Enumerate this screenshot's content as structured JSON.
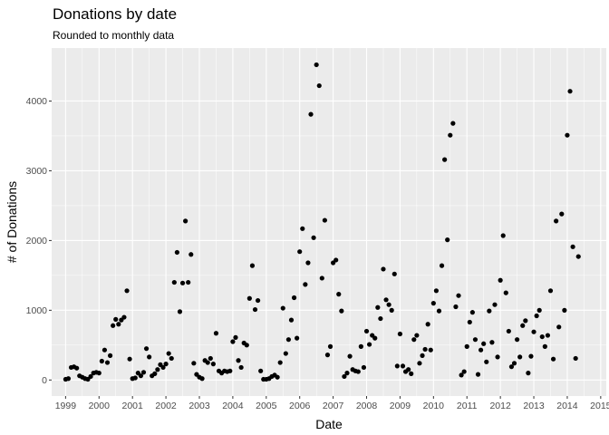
{
  "chart_data": {
    "type": "scatter",
    "title": "Donations by date",
    "subtitle": "Rounded to monthly data",
    "xlabel": "Date",
    "ylabel": "# of Donations",
    "x_ticks": [
      "1999",
      "2000",
      "2001",
      "2002",
      "2003",
      "2004",
      "2005",
      "2006",
      "2007",
      "2008",
      "2009",
      "2010",
      "2011",
      "2012",
      "2013",
      "2014",
      "2015"
    ],
    "y_ticks": [
      0,
      1000,
      2000,
      3000,
      4000
    ],
    "xlim": [
      "1998-08",
      "2015-03"
    ],
    "ylim": [
      -230,
      4760
    ],
    "grid": true,
    "colors": {
      "panel": "#EBEBEB",
      "grid": "#FFFFFF",
      "point": "#000000"
    },
    "points": [
      {
        "x": "1999-01",
        "y": 10
      },
      {
        "x": "1999-02",
        "y": 20
      },
      {
        "x": "1999-03",
        "y": 180
      },
      {
        "x": "1999-04",
        "y": 190
      },
      {
        "x": "1999-05",
        "y": 170
      },
      {
        "x": "1999-06",
        "y": 60
      },
      {
        "x": "1999-07",
        "y": 40
      },
      {
        "x": "1999-08",
        "y": 20
      },
      {
        "x": "1999-09",
        "y": 10
      },
      {
        "x": "1999-10",
        "y": 50
      },
      {
        "x": "1999-11",
        "y": 100
      },
      {
        "x": "1999-12",
        "y": 110
      },
      {
        "x": "2000-01",
        "y": 100
      },
      {
        "x": "2000-02",
        "y": 270
      },
      {
        "x": "2000-03",
        "y": 430
      },
      {
        "x": "2000-04",
        "y": 250
      },
      {
        "x": "2000-05",
        "y": 350
      },
      {
        "x": "2000-06",
        "y": 780
      },
      {
        "x": "2000-07",
        "y": 870
      },
      {
        "x": "2000-08",
        "y": 800
      },
      {
        "x": "2000-09",
        "y": 860
      },
      {
        "x": "2000-10",
        "y": 900
      },
      {
        "x": "2000-11",
        "y": 1280
      },
      {
        "x": "2000-12",
        "y": 300
      },
      {
        "x": "2001-01",
        "y": 20
      },
      {
        "x": "2001-02",
        "y": 30
      },
      {
        "x": "2001-03",
        "y": 100
      },
      {
        "x": "2001-04",
        "y": 60
      },
      {
        "x": "2001-05",
        "y": 110
      },
      {
        "x": "2001-06",
        "y": 450
      },
      {
        "x": "2001-07",
        "y": 330
      },
      {
        "x": "2001-08",
        "y": 60
      },
      {
        "x": "2001-09",
        "y": 90
      },
      {
        "x": "2001-10",
        "y": 150
      },
      {
        "x": "2001-11",
        "y": 220
      },
      {
        "x": "2001-12",
        "y": 180
      },
      {
        "x": "2002-01",
        "y": 230
      },
      {
        "x": "2002-02",
        "y": 380
      },
      {
        "x": "2002-03",
        "y": 310
      },
      {
        "x": "2002-04",
        "y": 1400
      },
      {
        "x": "2002-05",
        "y": 1830
      },
      {
        "x": "2002-06",
        "y": 980
      },
      {
        "x": "2002-07",
        "y": 1390
      },
      {
        "x": "2002-08",
        "y": 2280
      },
      {
        "x": "2002-09",
        "y": 1400
      },
      {
        "x": "2002-10",
        "y": 1800
      },
      {
        "x": "2002-11",
        "y": 240
      },
      {
        "x": "2002-12",
        "y": 80
      },
      {
        "x": "2003-01",
        "y": 40
      },
      {
        "x": "2003-02",
        "y": 20
      },
      {
        "x": "2003-03",
        "y": 280
      },
      {
        "x": "2003-04",
        "y": 250
      },
      {
        "x": "2003-05",
        "y": 310
      },
      {
        "x": "2003-06",
        "y": 230
      },
      {
        "x": "2003-07",
        "y": 670
      },
      {
        "x": "2003-08",
        "y": 130
      },
      {
        "x": "2003-09",
        "y": 100
      },
      {
        "x": "2003-10",
        "y": 130
      },
      {
        "x": "2003-11",
        "y": 120
      },
      {
        "x": "2003-12",
        "y": 130
      },
      {
        "x": "2004-01",
        "y": 550
      },
      {
        "x": "2004-02",
        "y": 610
      },
      {
        "x": "2004-03",
        "y": 280
      },
      {
        "x": "2004-04",
        "y": 180
      },
      {
        "x": "2004-05",
        "y": 530
      },
      {
        "x": "2004-06",
        "y": 500
      },
      {
        "x": "2004-07",
        "y": 1170
      },
      {
        "x": "2004-08",
        "y": 1640
      },
      {
        "x": "2004-09",
        "y": 1010
      },
      {
        "x": "2004-10",
        "y": 1140
      },
      {
        "x": "2004-11",
        "y": 130
      },
      {
        "x": "2004-12",
        "y": 10
      },
      {
        "x": "2005-01",
        "y": 10
      },
      {
        "x": "2005-02",
        "y": 20
      },
      {
        "x": "2005-03",
        "y": 50
      },
      {
        "x": "2005-04",
        "y": 70
      },
      {
        "x": "2005-05",
        "y": 40
      },
      {
        "x": "2005-06",
        "y": 250
      },
      {
        "x": "2005-07",
        "y": 1030
      },
      {
        "x": "2005-08",
        "y": 380
      },
      {
        "x": "2005-09",
        "y": 580
      },
      {
        "x": "2005-10",
        "y": 860
      },
      {
        "x": "2005-11",
        "y": 1180
      },
      {
        "x": "2005-12",
        "y": 600
      },
      {
        "x": "2006-01",
        "y": 1840
      },
      {
        "x": "2006-02",
        "y": 2170
      },
      {
        "x": "2006-03",
        "y": 1370
      },
      {
        "x": "2006-04",
        "y": 1680
      },
      {
        "x": "2006-05",
        "y": 3810
      },
      {
        "x": "2006-06",
        "y": 2040
      },
      {
        "x": "2006-07",
        "y": 4520
      },
      {
        "x": "2006-08",
        "y": 4220
      },
      {
        "x": "2006-09",
        "y": 1460
      },
      {
        "x": "2006-10",
        "y": 2290
      },
      {
        "x": "2006-11",
        "y": 360
      },
      {
        "x": "2006-12",
        "y": 480
      },
      {
        "x": "2007-01",
        "y": 1680
      },
      {
        "x": "2007-02",
        "y": 1720
      },
      {
        "x": "2007-03",
        "y": 1230
      },
      {
        "x": "2007-04",
        "y": 990
      },
      {
        "x": "2007-05",
        "y": 50
      },
      {
        "x": "2007-06",
        "y": 100
      },
      {
        "x": "2007-07",
        "y": 340
      },
      {
        "x": "2007-08",
        "y": 150
      },
      {
        "x": "2007-09",
        "y": 130
      },
      {
        "x": "2007-10",
        "y": 120
      },
      {
        "x": "2007-11",
        "y": 480
      },
      {
        "x": "2007-12",
        "y": 180
      },
      {
        "x": "2008-01",
        "y": 700
      },
      {
        "x": "2008-02",
        "y": 510
      },
      {
        "x": "2008-03",
        "y": 640
      },
      {
        "x": "2008-04",
        "y": 600
      },
      {
        "x": "2008-05",
        "y": 1040
      },
      {
        "x": "2008-06",
        "y": 880
      },
      {
        "x": "2008-07",
        "y": 1590
      },
      {
        "x": "2008-08",
        "y": 1150
      },
      {
        "x": "2008-09",
        "y": 1080
      },
      {
        "x": "2008-10",
        "y": 1000
      },
      {
        "x": "2008-11",
        "y": 1520
      },
      {
        "x": "2008-12",
        "y": 200
      },
      {
        "x": "2009-01",
        "y": 660
      },
      {
        "x": "2009-02",
        "y": 200
      },
      {
        "x": "2009-03",
        "y": 120
      },
      {
        "x": "2009-04",
        "y": 150
      },
      {
        "x": "2009-05",
        "y": 90
      },
      {
        "x": "2009-06",
        "y": 580
      },
      {
        "x": "2009-07",
        "y": 640
      },
      {
        "x": "2009-08",
        "y": 240
      },
      {
        "x": "2009-09",
        "y": 350
      },
      {
        "x": "2009-10",
        "y": 440
      },
      {
        "x": "2009-11",
        "y": 800
      },
      {
        "x": "2009-12",
        "y": 430
      },
      {
        "x": "2010-01",
        "y": 1100
      },
      {
        "x": "2010-02",
        "y": 1280
      },
      {
        "x": "2010-03",
        "y": 990
      },
      {
        "x": "2010-04",
        "y": 1640
      },
      {
        "x": "2010-05",
        "y": 3160
      },
      {
        "x": "2010-06",
        "y": 2010
      },
      {
        "x": "2010-07",
        "y": 3510
      },
      {
        "x": "2010-08",
        "y": 3680
      },
      {
        "x": "2010-09",
        "y": 1050
      },
      {
        "x": "2010-10",
        "y": 1210
      },
      {
        "x": "2010-11",
        "y": 70
      },
      {
        "x": "2010-12",
        "y": 120
      },
      {
        "x": "2011-01",
        "y": 480
      },
      {
        "x": "2011-02",
        "y": 830
      },
      {
        "x": "2011-03",
        "y": 970
      },
      {
        "x": "2011-04",
        "y": 580
      },
      {
        "x": "2011-05",
        "y": 80
      },
      {
        "x": "2011-06",
        "y": 430
      },
      {
        "x": "2011-07",
        "y": 520
      },
      {
        "x": "2011-08",
        "y": 260
      },
      {
        "x": "2011-09",
        "y": 990
      },
      {
        "x": "2011-10",
        "y": 540
      },
      {
        "x": "2011-11",
        "y": 1080
      },
      {
        "x": "2011-12",
        "y": 330
      },
      {
        "x": "2012-01",
        "y": 1430
      },
      {
        "x": "2012-02",
        "y": 2070
      },
      {
        "x": "2012-03",
        "y": 1250
      },
      {
        "x": "2012-04",
        "y": 700
      },
      {
        "x": "2012-05",
        "y": 190
      },
      {
        "x": "2012-06",
        "y": 240
      },
      {
        "x": "2012-07",
        "y": 580
      },
      {
        "x": "2012-08",
        "y": 330
      },
      {
        "x": "2012-09",
        "y": 780
      },
      {
        "x": "2012-10",
        "y": 850
      },
      {
        "x": "2012-11",
        "y": 100
      },
      {
        "x": "2012-12",
        "y": 340
      },
      {
        "x": "2013-01",
        "y": 690
      },
      {
        "x": "2013-02",
        "y": 920
      },
      {
        "x": "2013-03",
        "y": 1000
      },
      {
        "x": "2013-04",
        "y": 620
      },
      {
        "x": "2013-05",
        "y": 480
      },
      {
        "x": "2013-06",
        "y": 640
      },
      {
        "x": "2013-07",
        "y": 1280
      },
      {
        "x": "2013-08",
        "y": 300
      },
      {
        "x": "2013-09",
        "y": 2280
      },
      {
        "x": "2013-10",
        "y": 760
      },
      {
        "x": "2013-11",
        "y": 2380
      },
      {
        "x": "2013-12",
        "y": 1000
      },
      {
        "x": "2014-01",
        "y": 3510
      },
      {
        "x": "2014-02",
        "y": 4140
      },
      {
        "x": "2014-03",
        "y": 1910
      },
      {
        "x": "2014-04",
        "y": 310
      },
      {
        "x": "2014-05",
        "y": 1770
      }
    ]
  }
}
